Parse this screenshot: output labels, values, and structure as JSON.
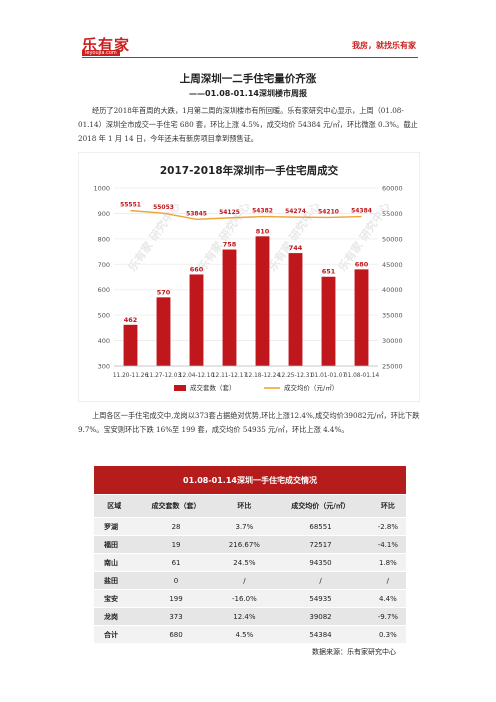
{
  "header": {
    "logo_main": "乐有家",
    "logo_sub": "leyoujia.com",
    "slogan": "我房，就找乐有家",
    "brand_color": "#cc1f1f"
  },
  "article": {
    "title": "上周深圳一二手住宅量价齐涨",
    "subtitle": "——01.08-01.14深圳楼市周报",
    "para1": "经历了2018年首周的大跌，1月第二周的深圳楼市有所回暖。乐有家研究中心显示，上周（01.08-01.14）深圳全市成交一手住宅 680 套，环比上涨 4.5%，成交均价 54384 元/㎡，环比微涨 0.3%。截止 2018 年 1 月 14 日，今年还未有新房项目拿到预售证。",
    "para2": "上周各区一手住宅成交中,龙岗以373套占据绝对优势,环比上涨12.4%,成交均价39082元/㎡，环比下跌 9.7%。宝安则环比下跌 16%至 199 套，成交均价 54935 元/㎡，环比上涨 4.4%。"
  },
  "chart_data": {
    "type": "bar",
    "title": "2017-2018年深圳市一手住宅周成交",
    "categories": [
      "11.20-11.26",
      "11.27-12.03",
      "12.04-12.10",
      "12.11-12.17",
      "12.18-12.24",
      "12.25-12.31",
      "01.01-01.07",
      "01.08-01.14"
    ],
    "series": [
      {
        "name": "成交套数（套）",
        "type": "bar",
        "axis": "left",
        "values": [
          462,
          570,
          660,
          758,
          810,
          744,
          651,
          680
        ],
        "color": "#c0171c"
      },
      {
        "name": "成交均价（元/㎡）",
        "type": "line",
        "axis": "right",
        "values": [
          55551,
          55053,
          53845,
          54125,
          54382,
          54274,
          54210,
          54384
        ],
        "color": "#f0a33a"
      }
    ],
    "ylim_left": [
      300,
      1000
    ],
    "yticks_left": [
      300,
      400,
      500,
      600,
      700,
      800,
      900,
      1000
    ],
    "ylim_right": [
      25000,
      60000
    ],
    "yticks_right": [
      25000,
      30000,
      35000,
      40000,
      45000,
      50000,
      55000,
      60000
    ],
    "watermark": "乐有家 研究中心"
  },
  "table": {
    "title": "01.08-01.14深圳一手住宅成交情况",
    "headers": [
      "区域",
      "成交套数（套）",
      "环比",
      "成交均价（元/㎡）",
      "环比"
    ],
    "rows": [
      [
        "罗湖",
        "28",
        "3.7%",
        "68551",
        "-2.8%"
      ],
      [
        "福田",
        "19",
        "216.67%",
        "72517",
        "-4.1%"
      ],
      [
        "南山",
        "61",
        "24.5%",
        "94350",
        "1.8%"
      ],
      [
        "盐田",
        "0",
        "/",
        "/",
        "/"
      ],
      [
        "宝安",
        "199",
        "-16.0%",
        "54935",
        "4.4%"
      ],
      [
        "龙岗",
        "373",
        "12.4%",
        "39082",
        "-9.7%"
      ],
      [
        "合计",
        "680",
        "4.5%",
        "54384",
        "0.3%"
      ]
    ],
    "source": "数据来源：乐有家研究中心",
    "header_color": "#b71c1c"
  }
}
